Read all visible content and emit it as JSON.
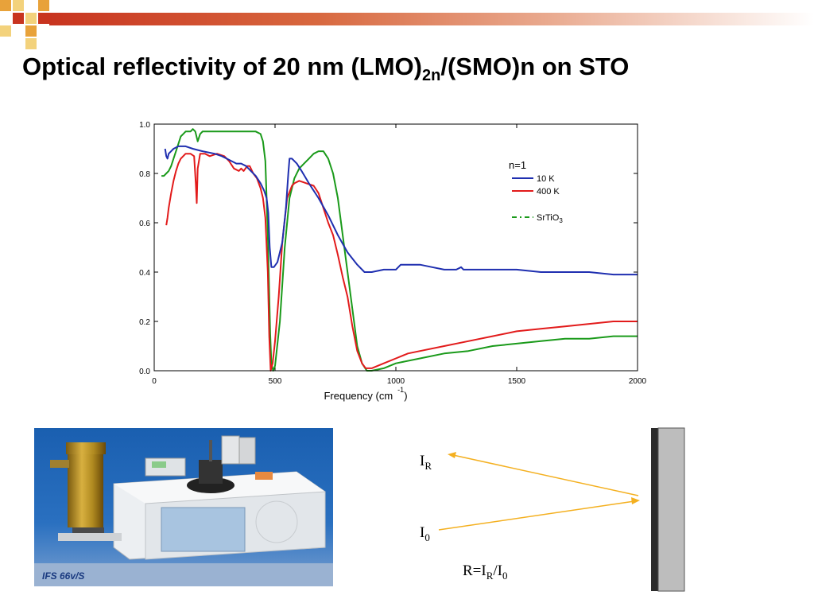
{
  "slide": {
    "title_main": "Optical reflectivity of 20 nm (LMO)",
    "title_sub": "2n",
    "title_rest": "/(SMO)n on STO"
  },
  "photo": {
    "caption": "IFS 66v/S"
  },
  "diagram": {
    "ir_main": "I",
    "ir_sub": "R",
    "i0_main": "I",
    "i0_sub": "0",
    "formula_a": "R=I",
    "formula_a_sub": "R",
    "formula_b": "/I",
    "formula_b_sub": "0"
  },
  "colors": {
    "blue": "#1f2fb0",
    "red": "#e21b1b",
    "green": "#1a9a1a",
    "arrow": "#f4b020"
  },
  "chart_data": {
    "type": "line",
    "xlabel_main": "Frequency (cm",
    "xlabel_sup": "-1",
    "xlabel_end": ")",
    "xlim": [
      0,
      2000
    ],
    "ylim": [
      0.0,
      1.0
    ],
    "xticks": [
      "0",
      "500",
      "1000",
      "1500",
      "2000"
    ],
    "yticks": [
      "0.0",
      "0.2",
      "0.4",
      "0.6",
      "0.8",
      "1.0"
    ],
    "xtick_values": [
      0,
      500,
      1000,
      1500,
      2000
    ],
    "ytick_values": [
      0.0,
      0.2,
      0.4,
      0.6,
      0.8,
      1.0
    ],
    "legend_title": "n=1",
    "legend_placement": "right",
    "series": [
      {
        "name": "10 K",
        "color": "#1f2fb0",
        "dashed": false,
        "x": [
          45,
          50,
          55,
          60,
          70,
          80,
          100,
          130,
          160,
          200,
          250,
          280,
          300,
          320,
          340,
          360,
          380,
          400,
          420,
          440,
          455,
          465,
          472,
          478,
          485,
          495,
          510,
          530,
          545,
          555,
          560,
          570,
          590,
          610,
          640,
          680,
          720,
          760,
          800,
          840,
          870,
          900,
          950,
          1000,
          1020,
          1100,
          1150,
          1200,
          1250,
          1270,
          1280,
          1300,
          1400,
          1500,
          1600,
          1700,
          1800,
          1900,
          2000
        ],
        "y": [
          0.9,
          0.87,
          0.86,
          0.88,
          0.89,
          0.9,
          0.91,
          0.91,
          0.9,
          0.89,
          0.88,
          0.87,
          0.86,
          0.85,
          0.84,
          0.84,
          0.83,
          0.81,
          0.79,
          0.76,
          0.73,
          0.7,
          0.64,
          0.5,
          0.42,
          0.42,
          0.44,
          0.52,
          0.66,
          0.8,
          0.86,
          0.86,
          0.84,
          0.81,
          0.76,
          0.7,
          0.63,
          0.55,
          0.48,
          0.43,
          0.4,
          0.4,
          0.41,
          0.41,
          0.43,
          0.43,
          0.42,
          0.41,
          0.41,
          0.42,
          0.41,
          0.41,
          0.41,
          0.41,
          0.4,
          0.4,
          0.4,
          0.39,
          0.39
        ]
      },
      {
        "name": "400 K",
        "color": "#e21b1b",
        "dashed": false,
        "x": [
          50,
          55,
          60,
          70,
          80,
          90,
          100,
          110,
          130,
          150,
          165,
          172,
          176,
          180,
          190,
          210,
          230,
          260,
          290,
          310,
          330,
          350,
          360,
          370,
          385,
          395,
          410,
          425,
          440,
          450,
          460,
          470,
          476,
          482,
          490,
          500,
          515,
          530,
          550,
          570,
          580,
          600,
          630,
          660,
          680,
          700,
          720,
          740,
          760,
          780,
          800,
          820,
          840,
          860,
          875,
          900,
          950,
          1000,
          1050,
          1100,
          1200,
          1300,
          1400,
          1500,
          1600,
          1700,
          1800,
          1900,
          2000
        ],
        "y": [
          0.59,
          0.62,
          0.66,
          0.72,
          0.77,
          0.81,
          0.84,
          0.86,
          0.88,
          0.88,
          0.87,
          0.76,
          0.68,
          0.82,
          0.88,
          0.88,
          0.87,
          0.88,
          0.87,
          0.85,
          0.82,
          0.81,
          0.82,
          0.81,
          0.83,
          0.83,
          0.8,
          0.78,
          0.74,
          0.7,
          0.62,
          0.4,
          0.14,
          0.0,
          0.03,
          0.12,
          0.3,
          0.52,
          0.7,
          0.75,
          0.76,
          0.77,
          0.76,
          0.75,
          0.72,
          0.66,
          0.6,
          0.55,
          0.47,
          0.38,
          0.3,
          0.18,
          0.08,
          0.03,
          0.01,
          0.01,
          0.03,
          0.05,
          0.07,
          0.08,
          0.1,
          0.12,
          0.14,
          0.16,
          0.17,
          0.18,
          0.19,
          0.2,
          0.2
        ]
      },
      {
        "name": "SrTiO",
        "name_sub": "3",
        "color": "#1a9a1a",
        "dashed": true,
        "x": [
          30,
          40,
          50,
          60,
          70,
          80,
          90,
          100,
          110,
          120,
          130,
          140,
          150,
          160,
          170,
          180,
          190,
          200,
          250,
          300,
          350,
          400,
          420,
          440,
          450,
          460,
          465,
          470,
          475,
          480,
          485,
          492,
          500,
          520,
          540,
          560,
          580,
          600,
          620,
          640,
          660,
          680,
          700,
          720,
          740,
          760,
          780,
          800,
          820,
          840,
          860,
          880,
          900,
          950,
          1000,
          1100,
          1200,
          1300,
          1400,
          1500,
          1600,
          1700,
          1800,
          1900,
          2000
        ],
        "y": [
          0.79,
          0.79,
          0.8,
          0.81,
          0.83,
          0.86,
          0.89,
          0.92,
          0.95,
          0.96,
          0.97,
          0.97,
          0.97,
          0.98,
          0.97,
          0.93,
          0.96,
          0.97,
          0.97,
          0.97,
          0.97,
          0.97,
          0.97,
          0.96,
          0.93,
          0.85,
          0.7,
          0.55,
          0.35,
          0.15,
          0.03,
          0.0,
          0.02,
          0.2,
          0.5,
          0.7,
          0.78,
          0.82,
          0.84,
          0.86,
          0.88,
          0.89,
          0.89,
          0.86,
          0.8,
          0.7,
          0.55,
          0.4,
          0.25,
          0.1,
          0.03,
          0.0,
          0.0,
          0.01,
          0.03,
          0.05,
          0.07,
          0.08,
          0.1,
          0.11,
          0.12,
          0.13,
          0.13,
          0.14,
          0.14
        ]
      }
    ]
  }
}
